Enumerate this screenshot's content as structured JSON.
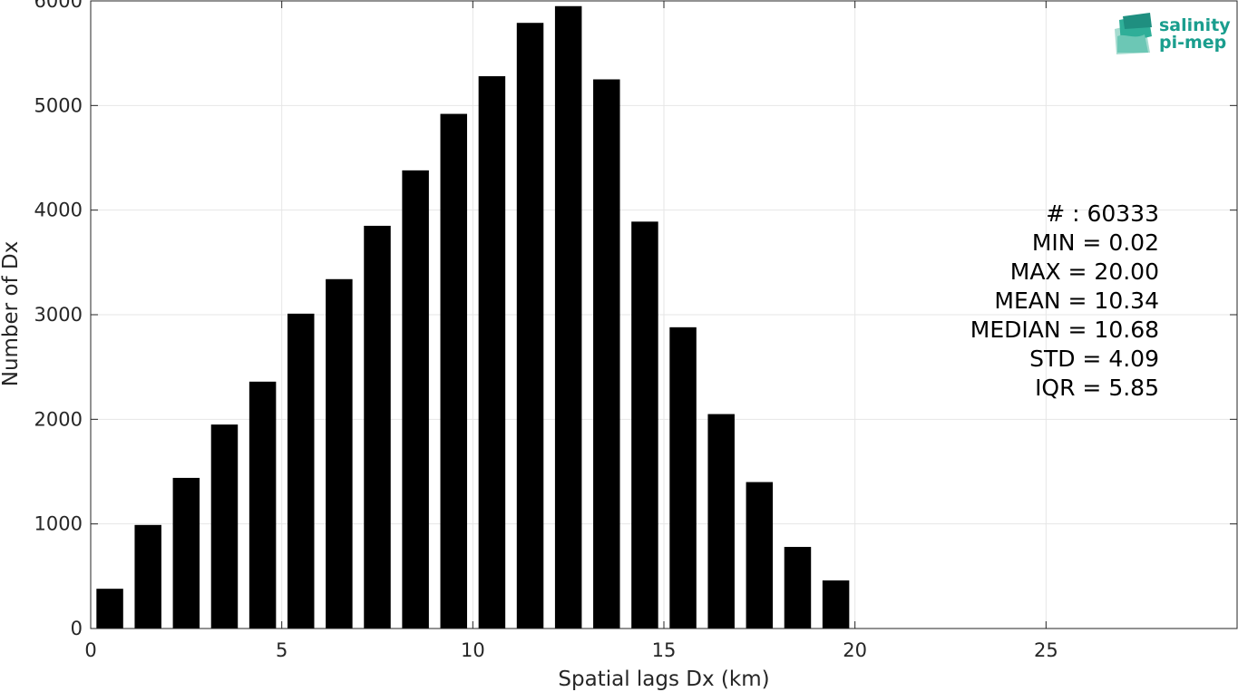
{
  "chart_data": {
    "type": "bar",
    "x": [
      0.5,
      1.5,
      2.5,
      3.5,
      4.5,
      5.5,
      6.5,
      7.5,
      8.5,
      9.5,
      10.5,
      11.5,
      12.5,
      13.5,
      14.5,
      15.5,
      16.5,
      17.5,
      18.5,
      19.5
    ],
    "values": [
      380,
      990,
      1440,
      1950,
      2360,
      3010,
      3340,
      3850,
      4380,
      4920,
      5280,
      5790,
      5950,
      5250,
      3890,
      2880,
      2050,
      1400,
      780,
      460
    ],
    "bar_width": 0.7,
    "xlabel": "Spatial lags Dx (km)",
    "ylabel": "Number of Dx",
    "xlim": [
      0,
      30
    ],
    "ylim": [
      0,
      6000
    ],
    "xticks": [
      0,
      5,
      10,
      15,
      20,
      25
    ],
    "yticks": [
      0,
      1000,
      2000,
      3000,
      4000,
      5000,
      6000
    ],
    "grid": true,
    "bar_color": "#000000",
    "annotations": [
      "# : 60333",
      "MIN = 0.02",
      "MAX =  20.00",
      "MEAN = 10.34",
      "MEDIAN = 10.68",
      "STD = 4.09",
      "IQR = 5.85"
    ]
  },
  "logo": {
    "line1": "salinity",
    "line2": "pi-mep",
    "color": "#1a9e8e"
  }
}
